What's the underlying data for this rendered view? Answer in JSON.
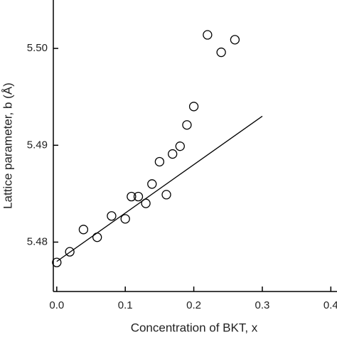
{
  "chart_data": {
    "type": "scatter",
    "x_label": "Concentration of BKT, x",
    "y_label": "Lattice parameter, b (Å)",
    "x": [
      0,
      0.019,
      0.039,
      0.059,
      0.08,
      0.1,
      0.109,
      0.119,
      0.13,
      0.139,
      0.15,
      0.16,
      0.169,
      0.18,
      0.19,
      0.2,
      0.22,
      0.24,
      0.26
    ],
    "values": [
      5.4779,
      5.479,
      5.4813,
      5.4805,
      5.4827,
      5.4824,
      5.4847,
      5.4847,
      5.484,
      5.486,
      5.4883,
      5.4849,
      5.4891,
      5.4899,
      5.4921,
      5.494,
      5.5014,
      5.4996,
      5.5009
    ],
    "fit_x": [
      0,
      0.3
    ],
    "fit_values": [
      5.478,
      5.493
    ],
    "color": "#000000",
    "xlim": [
      -0.005,
      0.409
    ],
    "ylim": [
      5.4749,
      5.505
    ],
    "xticks": [
      {
        "value": 0,
        "label": "0.0"
      },
      0.1,
      0.2,
      0.3,
      0.4
    ],
    "yticks": [
      5.48,
      5.49,
      {
        "value": 5.5,
        "label": "5.50"
      }
    ]
  }
}
